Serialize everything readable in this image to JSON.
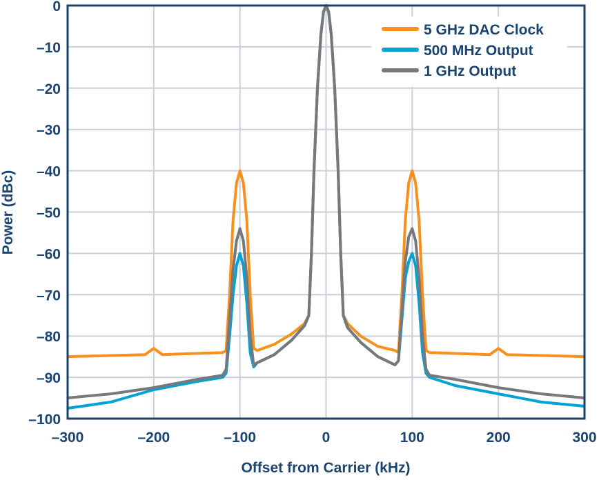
{
  "chart_data": {
    "type": "line",
    "title": "",
    "xlabel": "Offset from Carrier (kHz)",
    "ylabel": "Power (dBc)",
    "xlim": [
      -300,
      300
    ],
    "ylim": [
      -100,
      0
    ],
    "xticks": [
      "–300",
      "–200",
      "–100",
      "0",
      "100",
      "200",
      "300"
    ],
    "xtick_values": [
      -300,
      -200,
      -100,
      0,
      100,
      200,
      300
    ],
    "yticks": [
      "0",
      "–10",
      "–20",
      "–30",
      "–40",
      "–50",
      "–60",
      "–70",
      "–80",
      "–90",
      "–100"
    ],
    "ytick_values": [
      0,
      -10,
      -20,
      -30,
      -40,
      -50,
      -60,
      -70,
      -80,
      -90,
      -100
    ],
    "grid": true,
    "legend_position": "top-right",
    "series": [
      {
        "name": "5 GHz DAC Clock",
        "color": "#f7901e",
        "x": [
          -300,
          -210,
          -200,
          -190,
          -120,
          -116,
          -112,
          -108,
          -104,
          -100,
          -96,
          -92,
          -88,
          -84,
          -80,
          -60,
          -40,
          -25,
          -20,
          -17,
          -14,
          -10,
          -6,
          -3,
          0,
          3,
          6,
          10,
          14,
          17,
          20,
          25,
          40,
          60,
          80,
          84,
          88,
          92,
          96,
          100,
          104,
          108,
          112,
          116,
          120,
          190,
          200,
          210,
          300
        ],
        "y": [
          -85,
          -84.5,
          -83,
          -84.5,
          -84,
          -83.5,
          -70,
          -52,
          -43,
          -40,
          -43,
          -52,
          -70,
          -83,
          -83.5,
          -82,
          -79.5,
          -77,
          -75,
          -60,
          -40,
          -20,
          -7,
          -1.5,
          0,
          -1.5,
          -7,
          -20,
          -40,
          -60,
          -75,
          -77,
          -80,
          -82.5,
          -83.5,
          -84,
          -70,
          -52,
          -43,
          -40,
          -43,
          -52,
          -70,
          -83.5,
          -84,
          -84.5,
          -83,
          -84.5,
          -85
        ]
      },
      {
        "name": "500 MHz Output",
        "color": "#00a3d3",
        "x": [
          -300,
          -250,
          -200,
          -150,
          -120,
          -116,
          -112,
          -108,
          -104,
          -100,
          -96,
          -92,
          -88,
          -84,
          -80,
          -60,
          -40,
          -25,
          -20,
          -17,
          -14,
          -10,
          -6,
          -3,
          0,
          3,
          6,
          10,
          14,
          17,
          20,
          25,
          40,
          60,
          80,
          84,
          88,
          92,
          96,
          100,
          104,
          108,
          112,
          116,
          120,
          150,
          200,
          250,
          300
        ],
        "y": [
          -97.5,
          -96,
          -93,
          -91,
          -90,
          -89,
          -80,
          -70,
          -63,
          -60,
          -63,
          -72,
          -84,
          -87.5,
          -86.5,
          -84.5,
          -81,
          -77.5,
          -75,
          -60,
          -40,
          -20,
          -7,
          -1.5,
          0,
          -1.5,
          -7,
          -20,
          -40,
          -60,
          -75,
          -78,
          -81.5,
          -85,
          -87,
          -86,
          -76,
          -66,
          -62,
          -60,
          -63,
          -72,
          -84,
          -89,
          -90,
          -92,
          -94,
          -96,
          -97
        ]
      },
      {
        "name": "1 GHz Output",
        "color": "#77787b",
        "x": [
          -300,
          -250,
          -200,
          -150,
          -120,
          -116,
          -112,
          -108,
          -104,
          -100,
          -96,
          -92,
          -88,
          -84,
          -80,
          -60,
          -40,
          -25,
          -20,
          -17,
          -14,
          -10,
          -6,
          -3,
          0,
          3,
          6,
          10,
          14,
          17,
          20,
          25,
          40,
          60,
          80,
          84,
          88,
          92,
          96,
          100,
          104,
          108,
          112,
          116,
          120,
          150,
          200,
          250,
          300
        ],
        "y": [
          -95,
          -94,
          -92.5,
          -90.5,
          -89.5,
          -88,
          -76,
          -64,
          -57,
          -54,
          -57,
          -66,
          -80,
          -87,
          -86.5,
          -84.5,
          -81,
          -77.5,
          -75,
          -60,
          -40,
          -20,
          -7,
          -1.5,
          0,
          -1.5,
          -7,
          -20,
          -40,
          -60,
          -75,
          -78,
          -81.5,
          -85,
          -87,
          -86,
          -74,
          -62,
          -56,
          -54,
          -57,
          -66,
          -80,
          -88,
          -89.5,
          -90.5,
          -92.5,
          -94,
          -95
        ]
      }
    ]
  }
}
